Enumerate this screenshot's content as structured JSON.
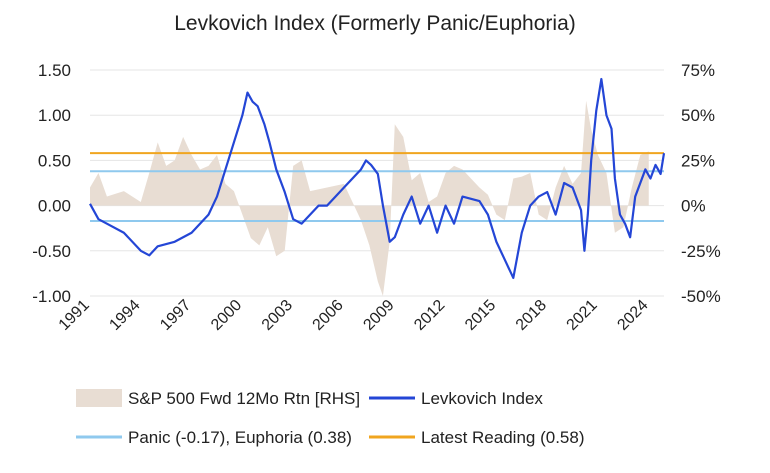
{
  "chart_data": {
    "type": "line",
    "title": "Levkovich Index (Formerly Panic/Euphoria)",
    "xlabel": "",
    "ylabel": "",
    "y_left": {
      "min": -1.0,
      "max": 1.5,
      "ticks": [
        1.5,
        1.0,
        0.5,
        0.0,
        -0.5,
        -1.0
      ],
      "tick_labels": [
        "1.50",
        "1.00",
        "0.50",
        "0.00",
        "-0.50",
        "-1.00"
      ]
    },
    "y_right": {
      "min": -50,
      "max": 75,
      "ticks": [
        75,
        50,
        25,
        0,
        -25,
        -50
      ],
      "tick_labels": [
        "75%",
        "50%",
        "25%",
        "0%",
        "-25%",
        "-50%"
      ]
    },
    "x_range": [
      1991,
      2024.9
    ],
    "x_ticks": [
      1991,
      1994,
      1997,
      2000,
      2003,
      2006,
      2009,
      2012,
      2015,
      2018,
      2021,
      2024
    ],
    "x_tick_labels": [
      "1991",
      "1994",
      "1997",
      "2000",
      "2003",
      "2006",
      "2009",
      "2012",
      "2015",
      "2018",
      "2021",
      "2024"
    ],
    "grid": true,
    "legend_position": "bottom",
    "colors": {
      "index": "#2446d6",
      "panic_euphoria": "#8fc9ee",
      "latest": "#f0a51f",
      "spx": "#e8ddd3",
      "grid": "#e5e5e5"
    },
    "reference_lines": [
      {
        "name": "Panic (-0.17), Euphoria (0.38)",
        "values": [
          -0.17,
          0.38
        ],
        "color": "#8fc9ee"
      },
      {
        "name": "Latest Reading (0.58)",
        "values": [
          0.58
        ],
        "color": "#f0a51f"
      }
    ],
    "series": [
      {
        "name": "S&P 500 Fwd 12Mo Rtn [RHS]",
        "type": "area",
        "axis": "right",
        "x": [
          1991.0,
          1991.5,
          1992.0,
          1993.0,
          1994.0,
          1994.5,
          1995.0,
          1995.5,
          1996.0,
          1996.5,
          1997.0,
          1997.5,
          1998.0,
          1998.5,
          1999.0,
          1999.5,
          2000.0,
          2000.5,
          2001.0,
          2001.5,
          2002.0,
          2002.5,
          2003.0,
          2003.5,
          2004.0,
          2005.0,
          2006.0,
          2007.0,
          2007.5,
          2008.0,
          2008.3,
          2008.7,
          2009.0,
          2009.5,
          2010.0,
          2010.5,
          2011.0,
          2011.5,
          2012.0,
          2012.5,
          2013.0,
          2014.0,
          2014.5,
          2015.0,
          2015.5,
          2016.0,
          2016.5,
          2017.0,
          2017.5,
          2018.0,
          2018.5,
          2019.0,
          2019.5,
          2020.0,
          2020.3,
          2020.6,
          2021.0,
          2021.5,
          2022.0,
          2022.5,
          2023.0,
          2023.5,
          2024.0
        ],
        "values": [
          10,
          18,
          5,
          8,
          2,
          18,
          35,
          22,
          25,
          38,
          28,
          20,
          22,
          28,
          12,
          8,
          -5,
          -18,
          -22,
          -12,
          -28,
          -25,
          22,
          25,
          8,
          10,
          12,
          -8,
          -22,
          -42,
          -50,
          -20,
          45,
          38,
          14,
          18,
          2,
          5,
          18,
          22,
          20,
          10,
          6,
          -5,
          -8,
          15,
          16,
          18,
          -5,
          -8,
          10,
          22,
          12,
          18,
          58,
          42,
          28,
          18,
          -15,
          -12,
          10,
          28,
          30
        ]
      },
      {
        "name": "Levkovich Index",
        "type": "line",
        "axis": "left",
        "x": [
          1991.0,
          1991.5,
          1992.0,
          1993.0,
          1994.0,
          1994.5,
          1995.0,
          1996.0,
          1997.0,
          1998.0,
          1998.5,
          1999.0,
          1999.5,
          2000.0,
          2000.3,
          2000.6,
          2000.9,
          2001.3,
          2001.6,
          2002.0,
          2002.5,
          2003.0,
          2003.5,
          2004.0,
          2004.5,
          2005.0,
          2006.0,
          2007.0,
          2007.3,
          2007.6,
          2008.0,
          2008.3,
          2008.7,
          2009.0,
          2009.5,
          2010.0,
          2010.5,
          2011.0,
          2011.5,
          2012.0,
          2012.5,
          2013.0,
          2014.0,
          2014.5,
          2015.0,
          2015.5,
          2016.0,
          2016.5,
          2017.0,
          2017.5,
          2018.0,
          2018.5,
          2019.0,
          2019.5,
          2020.0,
          2020.2,
          2020.4,
          2020.6,
          2020.9,
          2021.2,
          2021.5,
          2021.8,
          2022.0,
          2022.3,
          2022.6,
          2022.9,
          2023.2,
          2023.5,
          2023.8,
          2024.1,
          2024.4,
          2024.7,
          2024.9
        ],
        "values": [
          0.02,
          -0.15,
          -0.2,
          -0.3,
          -0.5,
          -0.55,
          -0.45,
          -0.4,
          -0.3,
          -0.1,
          0.1,
          0.4,
          0.7,
          1.0,
          1.25,
          1.15,
          1.1,
          0.9,
          0.7,
          0.4,
          0.15,
          -0.15,
          -0.2,
          -0.1,
          0.0,
          0.0,
          0.2,
          0.4,
          0.5,
          0.45,
          0.35,
          0.0,
          -0.4,
          -0.35,
          -0.1,
          0.1,
          -0.2,
          0.0,
          -0.3,
          0.0,
          -0.2,
          0.1,
          0.05,
          -0.1,
          -0.4,
          -0.6,
          -0.8,
          -0.3,
          0.0,
          0.1,
          0.15,
          -0.1,
          0.25,
          0.2,
          -0.05,
          -0.5,
          -0.1,
          0.5,
          1.05,
          1.4,
          1.0,
          0.85,
          0.3,
          -0.1,
          -0.2,
          -0.35,
          0.1,
          0.25,
          0.4,
          0.3,
          0.45,
          0.35,
          0.58
        ]
      }
    ]
  }
}
